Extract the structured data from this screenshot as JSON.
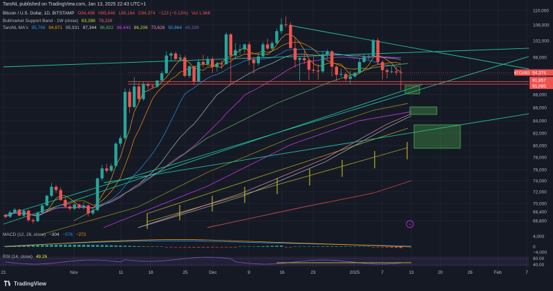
{
  "publisher": "TaroNL published on TradingView.com, Jan 13, 2025 22:43 UTC+1",
  "header": {
    "symbol": "Bitcoin / U.S. Dollar, 1D, BITSTAMP",
    "ohlc": [
      "O94,498",
      "H95,646",
      "L89,164",
      "C94,374",
      "−123 (−0.13%)"
    ],
    "volume": "Vol 1.96K",
    "bmsb": {
      "label": "Bullmarket Support Band - 1W (close)",
      "values": [
        "83,288",
        "79,226"
      ]
    },
    "ma": {
      "label": "TaroNL MA&#039;s",
      "values": [
        "95,786",
        "94,671",
        "95,931",
        "97,344",
        "96,822",
        "86,443",
        "86,206",
        "73,628",
        "50,864",
        "40,339"
      ]
    },
    "macd": {
      "label": "MACD (12, 26, close)",
      "values": [
        "−304",
        "−576",
        "−272"
      ]
    },
    "rsi": {
      "label": "RSI (14, close)",
      "values": [
        "49.26"
      ]
    }
  },
  "colors": {
    "up": "#26a69a",
    "down": "#ef5350",
    "green_line": "#22c1a0",
    "ma_colors": [
      "#f5a623",
      "#ff9800",
      "#2196f3",
      "#b0bec5",
      "#e040fb",
      "#ab47bc",
      "#66bb6a",
      "#9e9d24",
      "#ef5350",
      "#7e57c2"
    ]
  },
  "footer": {
    "brand": "TradingView"
  },
  "chart_data": {
    "type": "candlestick",
    "title": "Bitcoin / U.S. Dollar, 1D, BITSTAMP",
    "price_axis_ticks": [
      66800,
      68400,
      70000,
      72000,
      74000,
      76000,
      78000,
      80000,
      82000,
      84000,
      86000,
      88000,
      94000,
      98000,
      102000,
      106000,
      110000
    ],
    "time_axis_ticks": [
      "21",
      "Nov",
      "11",
      "18",
      "25",
      "Dec",
      "9",
      "16",
      "23",
      "2025",
      "7",
      "13",
      "20",
      "26",
      "Feb",
      "7"
    ],
    "price_labels": [
      {
        "text": "BTCUSD",
        "value": 94374
      },
      {
        "text": "94,374",
        "value": 94374
      },
      {
        "text": "91,857",
        "value": 91857
      },
      {
        "text": "91,085",
        "value": 91085
      }
    ],
    "ylim": [
      65500,
      111000
    ],
    "candles": [
      [
        67800,
        68100,
        67200,
        67500
      ],
      [
        67500,
        68600,
        67300,
        68300
      ],
      [
        68300,
        69100,
        68000,
        68800
      ],
      [
        68800,
        69000,
        67600,
        67700
      ],
      [
        67700,
        68900,
        67400,
        68600
      ],
      [
        68600,
        68800,
        66600,
        66900
      ],
      [
        66900,
        67200,
        66300,
        66700
      ],
      [
        66700,
        68400,
        66500,
        68200
      ],
      [
        68200,
        69800,
        68000,
        69600
      ],
      [
        69600,
        71500,
        69400,
        71300
      ],
      [
        71300,
        73600,
        71000,
        72900
      ],
      [
        72900,
        73200,
        71800,
        72300
      ],
      [
        72300,
        72800,
        70400,
        70600
      ],
      [
        70600,
        71000,
        69200,
        69400
      ],
      [
        69400,
        69800,
        68600,
        69000
      ],
      [
        69000,
        70100,
        68700,
        69800
      ],
      [
        69800,
        70000,
        68900,
        69300
      ],
      [
        69300,
        70200,
        68800,
        69600
      ],
      [
        69600,
        69800,
        67600,
        68100
      ],
      [
        68100,
        69000,
        67800,
        68700
      ],
      [
        68700,
        74600,
        68500,
        74400
      ],
      [
        74400,
        76800,
        74000,
        76200
      ],
      [
        76200,
        76900,
        75400,
        75800
      ],
      [
        75800,
        77000,
        75500,
        76600
      ],
      [
        76600,
        80500,
        76400,
        80300
      ],
      [
        80300,
        81600,
        79800,
        81200
      ],
      [
        81200,
        89900,
        80900,
        88800
      ],
      [
        88800,
        89800,
        85200,
        86100
      ],
      [
        86100,
        93200,
        85900,
        90400
      ],
      [
        90400,
        91500,
        86800,
        87300
      ],
      [
        87300,
        91800,
        87000,
        91100
      ],
      [
        91100,
        91600,
        89400,
        90600
      ],
      [
        90600,
        91000,
        89700,
        90400
      ],
      [
        90400,
        92300,
        90100,
        92200
      ],
      [
        92200,
        94800,
        91900,
        94300
      ],
      [
        94300,
        99400,
        94100,
        98400
      ],
      [
        98400,
        99300,
        97100,
        98900
      ],
      [
        98900,
        99400,
        97300,
        97600
      ],
      [
        97600,
        98700,
        97000,
        97900
      ],
      [
        97900,
        98400,
        93200,
        93600
      ],
      [
        93600,
        96200,
        93000,
        95900
      ],
      [
        95900,
        96100,
        90800,
        91900
      ],
      [
        91900,
        97600,
        91600,
        96900
      ],
      [
        96900,
        98600,
        95700,
        96400
      ],
      [
        96400,
        98200,
        96000,
        97600
      ],
      [
        97600,
        98100,
        94400,
        95700
      ],
      [
        95700,
        96900,
        94700,
        96500
      ],
      [
        96500,
        97200,
        95300,
        96400
      ],
      [
        96400,
        104100,
        96200,
        103600
      ],
      [
        103600,
        103900,
        91000,
        98400
      ],
      [
        98400,
        101400,
        97500,
        99700
      ],
      [
        99700,
        101100,
        98600,
        99900
      ],
      [
        99900,
        101300,
        99100,
        101100
      ],
      [
        101100,
        101700,
        96200,
        97400
      ],
      [
        97400,
        98000,
        94200,
        96600
      ],
      [
        96600,
        99000,
        96100,
        98200
      ],
      [
        98200,
        101700,
        97800,
        101100
      ],
      [
        101100,
        102500,
        99800,
        100100
      ],
      [
        100100,
        101900,
        99400,
        101400
      ],
      [
        101400,
        105100,
        101200,
        104400
      ],
      [
        104400,
        107800,
        103700,
        106100
      ],
      [
        106100,
        108300,
        105400,
        106000
      ],
      [
        106000,
        106700,
        100300,
        100200
      ],
      [
        100200,
        102800,
        95600,
        97400
      ],
      [
        97400,
        98200,
        92100,
        97800
      ],
      [
        97800,
        99500,
        96400,
        97300
      ],
      [
        97300,
        97800,
        92300,
        95100
      ],
      [
        95100,
        98100,
        94300,
        94900
      ],
      [
        94900,
        96400,
        92400,
        94700
      ],
      [
        94700,
        99500,
        94300,
        98700
      ],
      [
        98700,
        99900,
        97600,
        99400
      ],
      [
        99400,
        99700,
        93400,
        95800
      ],
      [
        95800,
        96100,
        92000,
        93900
      ],
      [
        93900,
        95400,
        93300,
        94100
      ],
      [
        94100,
        94500,
        92000,
        92700
      ],
      [
        92700,
        94900,
        91200,
        93400
      ],
      [
        93400,
        94600,
        93100,
        94400
      ],
      [
        94400,
        97800,
        94200,
        96900
      ],
      [
        96900,
        98900,
        96700,
        98100
      ],
      [
        98100,
        98800,
        97400,
        98200
      ],
      [
        98200,
        102500,
        97900,
        102100
      ],
      [
        102100,
        102700,
        96200,
        96900
      ],
      [
        96900,
        97300,
        92500,
        95000
      ],
      [
        95000,
        95400,
        92900,
        94600
      ],
      [
        94600,
        95900,
        94300,
        94700
      ],
      [
        94700,
        95700,
        93800,
        94500
      ],
      [
        94500,
        95646,
        89164,
        94374
      ]
    ]
  }
}
